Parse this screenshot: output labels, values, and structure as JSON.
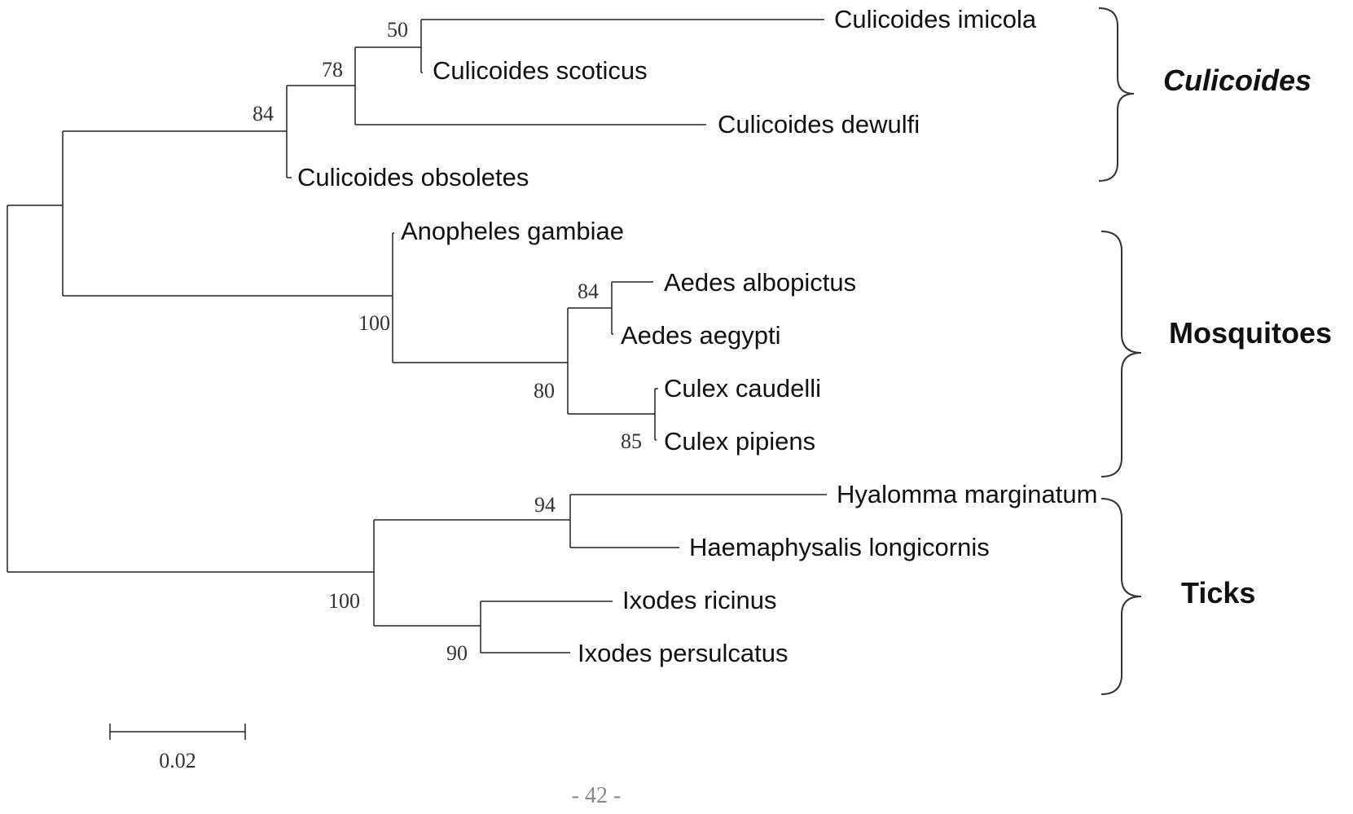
{
  "taxa": {
    "c_imicola": "Culicoides imicola",
    "c_scoticus": "Culicoides scoticus",
    "c_dewulfi": "Culicoides dewulfi",
    "c_obsoletes": "Culicoides obsoletes",
    "an_gambiae": "Anopheles gambiae",
    "ae_albopictus": "Aedes albopictus",
    "ae_aegypti": "Aedes aegypti",
    "cx_caudelli": "Culex caudelli",
    "cx_pipiens": "Culex pipiens",
    "hy_marginatum": "Hyalomma marginatum",
    "ha_longicornis": "Haemaphysalis longicornis",
    "ix_ricinus": "Ixodes ricinus",
    "ix_persulcatus": "Ixodes persulcatus"
  },
  "bootstrap": {
    "imicola_scoticus": "50",
    "imicola_scoticus_dewulfi": "78",
    "culicoides_clade": "84",
    "mosquitoes_clade": "100",
    "aedes_clade": "84",
    "aedes_culex_clade": "80",
    "culex_clade": "85",
    "hyalomma_haemaphysalis": "94",
    "ticks_clade": "100",
    "ixodes_clade": "90"
  },
  "groups": {
    "culicoides": "Culicoides",
    "mosquitoes": "Mosquitoes",
    "ticks": "Ticks"
  },
  "scale_bar": {
    "label": "0.02"
  },
  "page_number": "- 42 -"
}
